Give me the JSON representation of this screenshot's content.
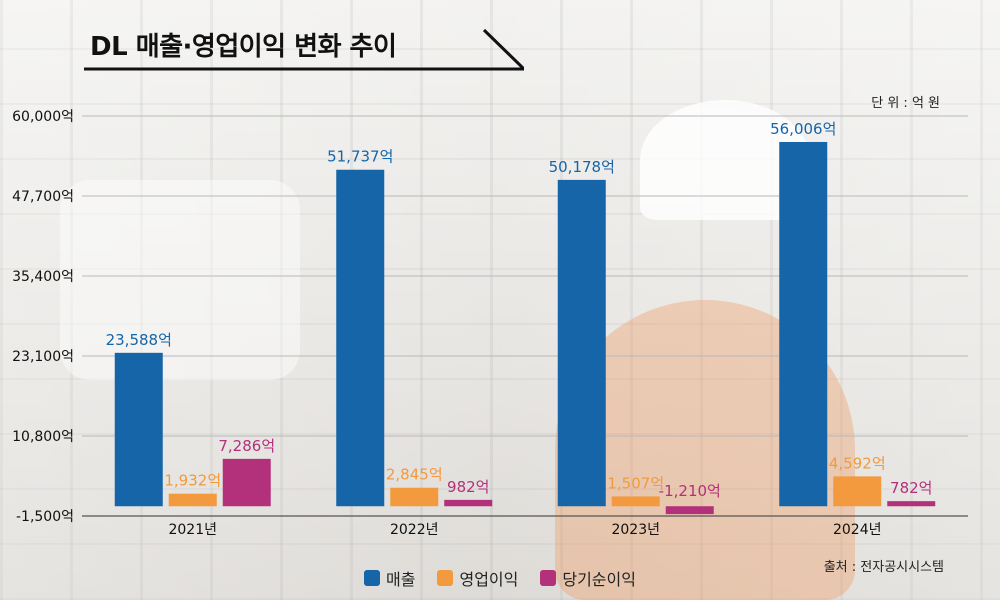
{
  "title": "DL 매출·영업이익 변화 추이",
  "unit_note": "단 위 : 억 원",
  "source_note": "출처 : 전자공시시스템",
  "colors": {
    "sales": "#1565a8",
    "operating": "#f29a3d",
    "net": "#b3307a"
  },
  "chart_data": {
    "type": "bar",
    "categories": [
      "2021년",
      "2022년",
      "2023년",
      "2024년"
    ],
    "series": [
      {
        "name": "매출",
        "values": [
          23588,
          51737,
          50178,
          56006
        ],
        "labels": [
          "23,588억",
          "51,737억",
          "50,178억",
          "56,006억"
        ]
      },
      {
        "name": "영업이익",
        "values": [
          1932,
          2845,
          1507,
          4592
        ],
        "labels": [
          "1,932억",
          "2,845억",
          "1,507억",
          "4,592억"
        ]
      },
      {
        "name": "당기순이익",
        "values": [
          7286,
          982,
          -1210,
          782
        ],
        "labels": [
          "7,286억",
          "982억",
          "-1,210억",
          "782억"
        ]
      }
    ],
    "yticks": [
      60000,
      47700,
      35400,
      23100,
      10800,
      -1500
    ],
    "ytick_labels": [
      "60,000억",
      "47,700억",
      "35,400억",
      "23,100억",
      "10,800억",
      "-1,500억"
    ],
    "ylim": [
      -1500,
      60000
    ],
    "grid": true,
    "legend_position": "bottom"
  }
}
